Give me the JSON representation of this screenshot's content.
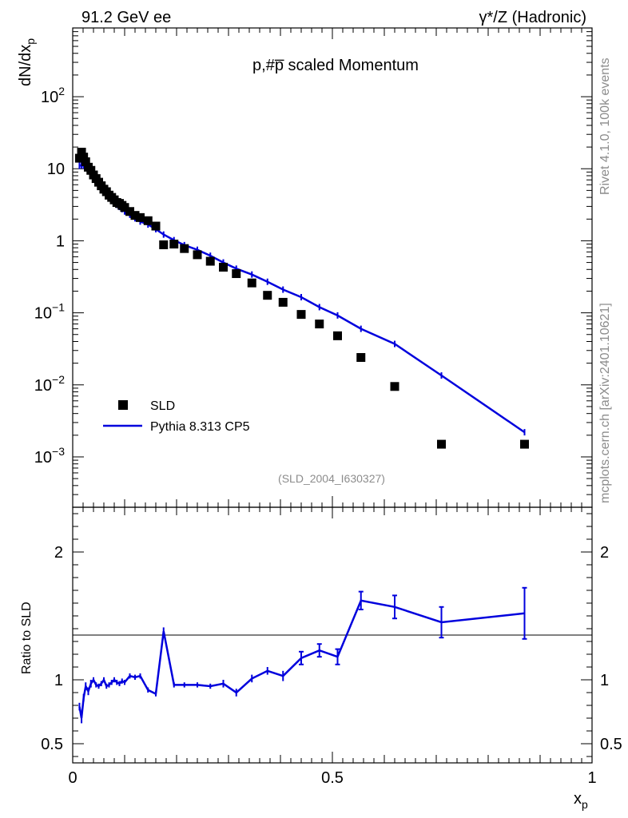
{
  "header": {
    "left": "91.2 GeV ee",
    "right": "γ*/Z (Hadronic)"
  },
  "side_labels": {
    "rivet": "Rivet 4.1.0,  100k events",
    "source": "mcplots.cern.ch [arXiv:2401.10621]"
  },
  "chart_data": {
    "type": "line",
    "title": "p,#p̅ scaled Momentum",
    "watermark": "(SLD_2004_I630327)",
    "xlabel": "x",
    "xlabel_sub": "p",
    "ylabel": "dN/dx",
    "ylabel_sub": "p",
    "xlim": [
      0,
      1
    ],
    "ylim": [
      0.0002,
      900
    ],
    "yscale": "log",
    "x_ticks": [
      {
        "v": 0,
        "label": "0"
      },
      {
        "v": 0.5,
        "label": "0.5"
      },
      {
        "v": 1,
        "label": "1"
      }
    ],
    "y_ticks": [
      {
        "v": 0.001,
        "base": "10",
        "exp": "−3",
        "plain": ""
      },
      {
        "v": 0.01,
        "base": "10",
        "exp": "−2",
        "plain": ""
      },
      {
        "v": 0.1,
        "base": "10",
        "exp": "−1",
        "plain": ""
      },
      {
        "v": 1,
        "base": "",
        "exp": "",
        "plain": "1"
      },
      {
        "v": 10,
        "base": "",
        "exp": "",
        "plain": "10"
      },
      {
        "v": 100,
        "base": "10",
        "exp": "2",
        "plain": ""
      }
    ],
    "legend": {
      "placement": "bottom-left",
      "data_label": "SLD",
      "mc_label": "Pythia 8.313 CP5"
    },
    "colors": {
      "data": "#000000",
      "mc": "#0000dd"
    },
    "series": [
      {
        "name": "SLD",
        "x": [
          0.013,
          0.017,
          0.021,
          0.025,
          0.03,
          0.035,
          0.04,
          0.045,
          0.05,
          0.055,
          0.06,
          0.065,
          0.07,
          0.075,
          0.08,
          0.085,
          0.09,
          0.095,
          0.1,
          0.11,
          0.12,
          0.13,
          0.145,
          0.16,
          0.175,
          0.195,
          0.215,
          0.24,
          0.265,
          0.29,
          0.315,
          0.345,
          0.375,
          0.405,
          0.44,
          0.475,
          0.51,
          0.555,
          0.62,
          0.71,
          0.87
        ],
        "values": [
          14,
          17,
          14.5,
          12.5,
          10.5,
          9.5,
          8.2,
          7.3,
          6.5,
          5.8,
          5.2,
          4.8,
          4.3,
          4.0,
          3.7,
          3.4,
          3.3,
          3.1,
          2.9,
          2.55,
          2.25,
          2.1,
          1.9,
          1.6,
          0.88,
          0.9,
          0.78,
          0.64,
          0.52,
          0.43,
          0.35,
          0.26,
          0.175,
          0.14,
          0.095,
          0.07,
          0.048,
          0.024,
          0.0095,
          0.0015,
          0.0015
        ]
      },
      {
        "name": "Pythia 8.313 CP5",
        "x": [
          0.013,
          0.017,
          0.021,
          0.025,
          0.03,
          0.035,
          0.04,
          0.045,
          0.05,
          0.055,
          0.06,
          0.065,
          0.07,
          0.075,
          0.08,
          0.085,
          0.09,
          0.095,
          0.1,
          0.11,
          0.12,
          0.13,
          0.145,
          0.16,
          0.175,
          0.195,
          0.215,
          0.24,
          0.265,
          0.29,
          0.315,
          0.345,
          0.375,
          0.405,
          0.44,
          0.475,
          0.51,
          0.555,
          0.62,
          0.71,
          0.87
        ],
        "values": [
          11,
          11.2,
          11.0,
          10.5,
          9.5,
          8.7,
          7.7,
          6.9,
          6.2,
          5.6,
          5.0,
          4.5,
          4.1,
          3.75,
          3.45,
          3.15,
          2.95,
          2.75,
          2.55,
          2.3,
          2.05,
          1.85,
          1.68,
          1.45,
          1.22,
          1.02,
          0.87,
          0.75,
          0.62,
          0.5,
          0.41,
          0.34,
          0.27,
          0.21,
          0.165,
          0.12,
          0.092,
          0.06,
          0.037,
          0.0135,
          0.0022
        ]
      }
    ],
    "ratio": {
      "ylabel": "Ratio to SLD",
      "ylim": [
        0.35,
        2.35
      ],
      "y_ticks": [
        {
          "v": 0.5,
          "label": "0.5"
        },
        {
          "v": 1,
          "label": "1"
        },
        {
          "v": 2,
          "label": "2"
        }
      ],
      "x": [
        0.013,
        0.017,
        0.021,
        0.025,
        0.03,
        0.035,
        0.04,
        0.045,
        0.05,
        0.055,
        0.06,
        0.065,
        0.07,
        0.075,
        0.08,
        0.085,
        0.09,
        0.095,
        0.1,
        0.11,
        0.12,
        0.13,
        0.145,
        0.16,
        0.175,
        0.195,
        0.215,
        0.24,
        0.265,
        0.29,
        0.315,
        0.345,
        0.375,
        0.405,
        0.44,
        0.475,
        0.51,
        0.555,
        0.62,
        0.71,
        0.87
      ],
      "values": [
        0.79,
        0.7,
        0.86,
        0.95,
        0.91,
        0.97,
        1.0,
        0.96,
        0.95,
        0.97,
        1.0,
        0.95,
        0.96,
        0.98,
        1.0,
        0.98,
        0.97,
        0.99,
        0.98,
        1.03,
        1.02,
        1.03,
        0.92,
        0.89,
        1.38,
        0.96,
        0.96,
        0.96,
        0.95,
        0.97,
        0.9,
        1.01,
        1.07,
        1.03,
        1.17,
        1.23,
        1.18,
        1.62,
        1.57,
        1.45,
        1.52
      ],
      "errors": [
        0.03,
        0.04,
        0.03,
        0.03,
        0.03,
        0.03,
        0.02,
        0.02,
        0.02,
        0.02,
        0.02,
        0.02,
        0.02,
        0.02,
        0.02,
        0.02,
        0.02,
        0.02,
        0.02,
        0.02,
        0.02,
        0.02,
        0.02,
        0.02,
        0.03,
        0.02,
        0.02,
        0.02,
        0.02,
        0.03,
        0.03,
        0.03,
        0.03,
        0.04,
        0.05,
        0.05,
        0.06,
        0.07,
        0.09,
        0.12,
        0.2
      ]
    }
  }
}
